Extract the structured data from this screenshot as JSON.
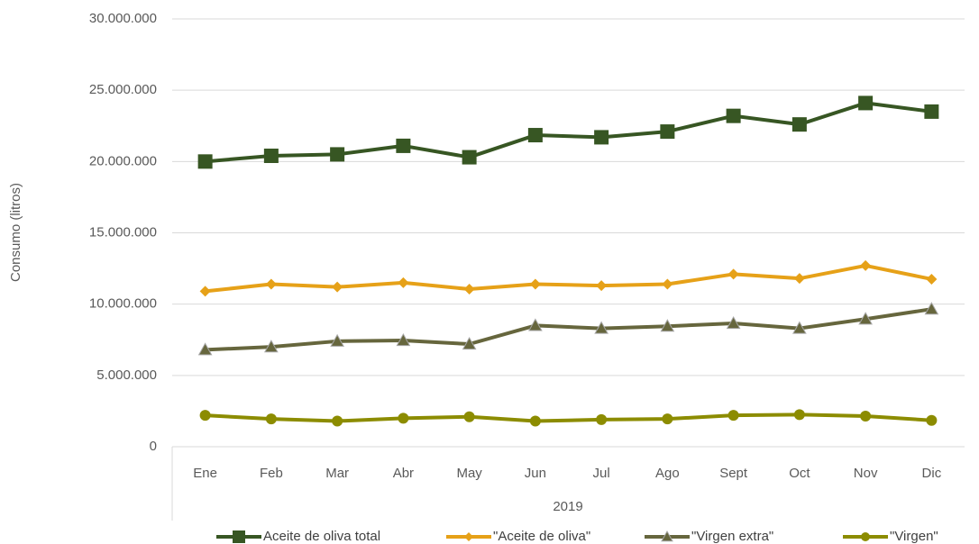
{
  "chart_data": {
    "type": "line",
    "ylabel": "Consumo (litros)",
    "x_group_label": "2019",
    "categories": [
      "Ene",
      "Feb",
      "Mar",
      "Abr",
      "May",
      "Jun",
      "Jul",
      "Ago",
      "Sept",
      "Oct",
      "Nov",
      "Dic"
    ],
    "series": [
      {
        "name": "Aceite de oliva total",
        "color": "#375623",
        "marker": "square",
        "values": [
          20000000,
          20400000,
          20500000,
          21100000,
          20300000,
          21850000,
          21700000,
          22100000,
          23200000,
          22600000,
          24100000,
          23500000
        ]
      },
      {
        "name": "\"Aceite de oliva\"",
        "color": "#e6a118",
        "marker": "diamond",
        "values": [
          10900000,
          11400000,
          11200000,
          11500000,
          11050000,
          11400000,
          11300000,
          11400000,
          12100000,
          11800000,
          12700000,
          11750000
        ]
      },
      {
        "name": "\"Virgen extra\"",
        "color": "#66663d",
        "marker": "triangle",
        "values": [
          6800000,
          7000000,
          7400000,
          7450000,
          7200000,
          8500000,
          8300000,
          8450000,
          8650000,
          8300000,
          8950000,
          9650000
        ]
      },
      {
        "name": "\"Virgen\"",
        "color": "#8c8c00",
        "marker": "circle",
        "values": [
          2200000,
          1950000,
          1800000,
          2000000,
          2100000,
          1800000,
          1900000,
          1950000,
          2200000,
          2250000,
          2150000,
          1850000
        ]
      }
    ],
    "ylim": [
      0,
      30000000
    ],
    "yticks": [
      0,
      {
        "value": 5000000,
        "label": "5.000.000"
      },
      {
        "value": 10000000,
        "label": "10.000.000"
      },
      {
        "value": 15000000,
        "label": "15.000.000"
      },
      {
        "value": 20000000,
        "label": "20.000.000"
      },
      {
        "value": 25000000,
        "label": "25.000.000"
      },
      {
        "value": 30000000,
        "label": "30.000.000"
      }
    ],
    "grid": true,
    "legend": "bottom"
  }
}
